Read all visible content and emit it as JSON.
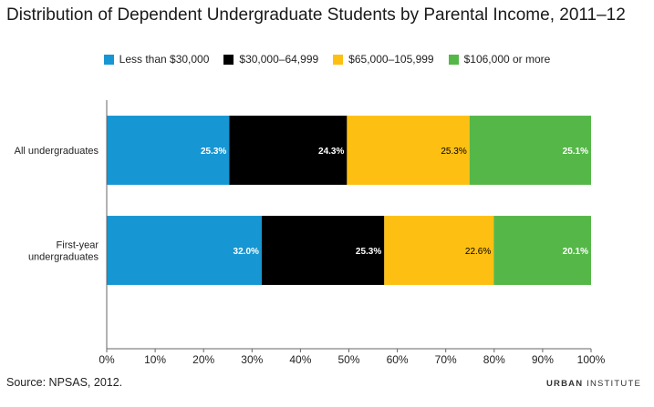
{
  "chart_data": {
    "type": "bar",
    "orientation": "horizontal",
    "stacked": true,
    "title": "Distribution of Dependent Undergraduate Students by Parental Income, 2011–12",
    "categories": [
      "All undergraduates",
      "First-year undergraduates"
    ],
    "series": [
      {
        "name": "Less than $30,000",
        "color": "#1696d2",
        "values": [
          25.3,
          32.0
        ],
        "labels": [
          "25.3%",
          "32.0%"
        ],
        "label_color": "#ffffff"
      },
      {
        "name": "$30,000–64,999",
        "color": "#000000",
        "values": [
          24.3,
          25.3
        ],
        "labels": [
          "24.3%",
          "25.3%"
        ],
        "label_color": "#ffffff"
      },
      {
        "name": "$65,000–105,999",
        "color": "#fdbf11",
        "values": [
          25.3,
          22.6
        ],
        "labels": [
          "25.3%",
          "22.6%"
        ],
        "label_color": "#000000"
      },
      {
        "name": "$106,000 or more",
        "color": "#55b748",
        "values": [
          25.1,
          20.1
        ],
        "labels": [
          "25.1%",
          "20.1%"
        ],
        "label_color": "#ffffff"
      }
    ],
    "xlim": [
      0,
      100
    ],
    "xticks": [
      "0%",
      "10%",
      "20%",
      "30%",
      "40%",
      "50%",
      "60%",
      "70%",
      "80%",
      "90%",
      "100%"
    ],
    "legend": "top",
    "grid": false,
    "source": "Source: NPSAS, 2012."
  },
  "brand": {
    "bold": "URBAN",
    "light": "INSTITUTE"
  }
}
